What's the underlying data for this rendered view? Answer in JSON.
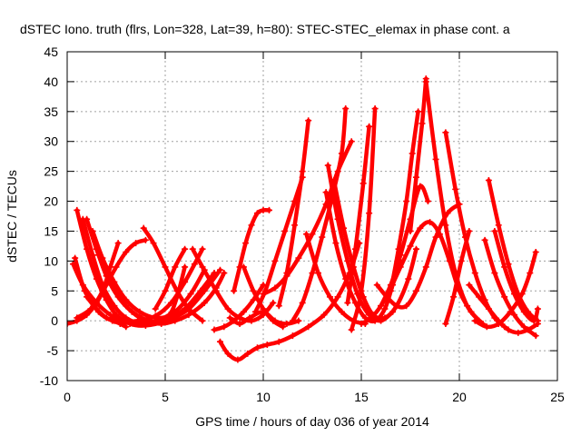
{
  "chart_data": {
    "type": "line",
    "title": "dSTEC Iono. truth (flrs, Lon=328, Lat=39, h=80): STEC-STEC_elemax in phase cont. a",
    "xlabel": "GPS time / hours of day 036 of year 2014",
    "ylabel": "dSTEC  / TECUs",
    "xlim": [
      0,
      25
    ],
    "ylim": [
      -10,
      45
    ],
    "xticks": [
      "0",
      "5",
      "10",
      "15",
      "20",
      "25"
    ],
    "yticks": [
      "-10",
      "-5",
      "0",
      "5",
      "10",
      "15",
      "20",
      "25",
      "30",
      "35",
      "40",
      "45"
    ],
    "grid": true,
    "legend": "none",
    "marker": "plus",
    "series_color": "#ff0000",
    "series": [
      {
        "x": [
          0.0,
          0.5,
          1.0,
          1.5,
          2.0,
          2.5,
          3.0,
          3.5,
          4.0
        ],
        "y": [
          -0.5,
          0.0,
          1.0,
          3.0,
          6.0,
          9.0,
          11.5,
          13.0,
          13.5
        ]
      },
      {
        "x": [
          0.3,
          0.8,
          1.5,
          2.2,
          2.8,
          3.6,
          4.5,
          5.3,
          6.0,
          6.5,
          6.9
        ],
        "y": [
          9.5,
          6.0,
          3.0,
          1.0,
          0.0,
          0.0,
          0.8,
          3.0,
          6.5,
          9.5,
          12.0
        ]
      },
      {
        "x": [
          0.4,
          0.9,
          1.6,
          2.3,
          2.9
        ],
        "y": [
          10.5,
          5.0,
          1.5,
          0.0,
          -0.5
        ]
      },
      {
        "x": [
          0.5,
          1.0,
          1.5,
          2.0,
          2.5,
          3.2,
          4.0,
          5.0,
          6.0,
          6.8,
          7.5
        ],
        "y": [
          18.5,
          12.0,
          7.0,
          3.5,
          1.0,
          -0.5,
          -0.8,
          0.0,
          2.0,
          5.0,
          8.0
        ]
      },
      {
        "x": [
          0.8,
          1.3,
          1.8,
          2.4,
          3.0,
          3.8,
          4.6,
          5.5,
          6.3,
          7.0
        ],
        "y": [
          17.0,
          11.0,
          6.0,
          2.5,
          0.5,
          -0.5,
          0.0,
          1.5,
          4.5,
          8.5
        ]
      },
      {
        "x": [
          1.0,
          1.6,
          2.2,
          3.0,
          3.8,
          4.6,
          5.4,
          6.2,
          7.0,
          7.8
        ],
        "y": [
          17.0,
          11.0,
          6.5,
          2.5,
          0.5,
          -0.2,
          0.5,
          2.0,
          5.0,
          8.5
        ]
      },
      {
        "x": [
          1.3,
          1.8,
          2.4,
          3.0,
          3.7,
          4.5,
          5.2,
          5.6,
          6.0
        ],
        "y": [
          15.0,
          10.5,
          6.5,
          3.5,
          1.5,
          0.5,
          1.0,
          4.0,
          9.0
        ]
      },
      {
        "x": [
          1.5,
          2.0,
          2.6,
          3.3,
          4.0,
          4.8,
          5.5,
          6.2,
          7.0,
          7.6,
          8.0
        ],
        "y": [
          12.0,
          7.5,
          4.0,
          1.5,
          0.0,
          -0.5,
          0.0,
          1.0,
          3.0,
          5.5,
          8.0
        ]
      },
      {
        "x": [
          0.5,
          1.2,
          1.8,
          2.2,
          2.6
        ],
        "y": [
          0.5,
          2.0,
          5.0,
          9.0,
          13.0
        ]
      },
      {
        "x": [
          1.0,
          1.5,
          2.0,
          2.4,
          2.7,
          3.0
        ],
        "y": [
          4.0,
          2.0,
          0.5,
          0.0,
          -0.5,
          -1.0
        ]
      },
      {
        "x": [
          3.9,
          4.4,
          5.0,
          5.6,
          6.2,
          6.9
        ],
        "y": [
          15.5,
          13.0,
          9.0,
          5.0,
          2.0,
          0.0
        ]
      },
      {
        "x": [
          4.5,
          5.0,
          5.5,
          6.0
        ],
        "y": [
          2.0,
          5.0,
          9.0,
          12.0
        ]
      },
      {
        "x": [
          6.4,
          6.9,
          7.6,
          8.2,
          8.8,
          9.4,
          10.0,
          10.5
        ],
        "y": [
          12.0,
          9.0,
          5.0,
          2.0,
          0.5,
          0.0,
          1.0,
          3.0
        ]
      },
      {
        "x": [
          7.8,
          8.2,
          8.7,
          9.2,
          9.7,
          10.2,
          10.8,
          11.5,
          12.3,
          13.1,
          13.8,
          14.4,
          14.9
        ],
        "y": [
          -3.5,
          -5.5,
          -6.5,
          -5.5,
          -4.5,
          -4.0,
          -3.5,
          -2.5,
          -1.0,
          1.0,
          4.0,
          8.0,
          13.0
        ]
      },
      {
        "x": [
          7.5,
          8.0,
          8.5,
          9.0,
          9.5,
          10.0
        ],
        "y": [
          -1.5,
          -1.0,
          0.0,
          1.5,
          3.5,
          6.0
        ]
      },
      {
        "x": [
          8.3,
          8.8,
          9.3,
          10.0,
          10.6,
          11.2,
          11.8
        ],
        "y": [
          0.5,
          -0.5,
          0.5,
          1.5,
          0.0,
          -0.5,
          0.0
        ]
      },
      {
        "x": [
          8.5,
          8.8,
          9.1,
          9.4,
          9.7,
          10.0,
          10.3
        ],
        "y": [
          5.0,
          9.0,
          13.0,
          16.0,
          18.0,
          18.5,
          18.5
        ]
      },
      {
        "x": [
          9.0,
          9.5,
          10.0,
          10.5,
          11.0
        ],
        "y": [
          9.0,
          5.0,
          2.0,
          0.0,
          -1.0
        ]
      },
      {
        "x": [
          9.6,
          10.1,
          10.6,
          11.1,
          11.6,
          12.0
        ],
        "y": [
          1.5,
          5.0,
          10.0,
          15.0,
          20.0,
          24.0
        ]
      },
      {
        "x": [
          10.0,
          10.6,
          11.2,
          11.8,
          12.5,
          13.2,
          13.8,
          14.5
        ],
        "y": [
          4.5,
          5.5,
          7.5,
          10.5,
          14.5,
          19.5,
          25.0,
          30.0
        ]
      },
      {
        "x": [
          10.8,
          11.2,
          11.6,
          12.0,
          12.3
        ],
        "y": [
          2.5,
          8.0,
          16.0,
          25.0,
          33.5
        ]
      },
      {
        "x": [
          12.2,
          12.8,
          13.4,
          14.0,
          14.6,
          15.2
        ],
        "y": [
          14.5,
          8.0,
          4.0,
          1.5,
          0.0,
          -0.5
        ]
      },
      {
        "x": [
          11.5,
          12.0,
          12.5,
          13.0,
          13.5,
          14.0,
          14.2
        ],
        "y": [
          0.0,
          3.0,
          8.0,
          14.0,
          20.5,
          28.0,
          35.5
        ]
      },
      {
        "x": [
          13.2,
          13.7,
          14.2,
          14.7,
          15.2,
          15.7,
          16.2,
          16.6,
          17.0
        ],
        "y": [
          21.5,
          13.0,
          7.0,
          3.0,
          0.5,
          0.0,
          2.0,
          6.0,
          10.0
        ]
      },
      {
        "x": [
          13.3,
          13.8,
          14.3,
          14.8,
          15.4,
          16.0,
          16.6
        ],
        "y": [
          26.0,
          17.0,
          10.0,
          4.5,
          1.0,
          0.0,
          1.5
        ]
      },
      {
        "x": [
          13.6,
          14.1,
          14.6,
          15.1,
          15.6,
          16.2,
          16.8,
          17.4,
          17.8
        ],
        "y": [
          23.5,
          15.5,
          9.0,
          4.0,
          1.0,
          0.5,
          2.5,
          7.0,
          12.0
        ]
      },
      {
        "x": [
          14.5,
          15.0,
          15.4,
          15.7
        ],
        "y": [
          -1.5,
          5.0,
          18.0,
          35.5
        ]
      },
      {
        "x": [
          14.3,
          14.7,
          15.1,
          15.4
        ],
        "y": [
          3.0,
          12.0,
          23.0,
          32.5
        ]
      },
      {
        "x": [
          15.0,
          15.5,
          16.0,
          16.5,
          17.0,
          17.5,
          18.0,
          18.5,
          19.0,
          19.5,
          20.0,
          20.6,
          21.2
        ],
        "y": [
          -0.5,
          0.5,
          2.5,
          5.5,
          9.0,
          12.5,
          15.5,
          16.5,
          14.5,
          10.0,
          5.0,
          1.5,
          -0.5
        ]
      },
      {
        "x": [
          15.8,
          16.3,
          16.8,
          17.3,
          17.8,
          18.3,
          18.8,
          19.4,
          20.0
        ],
        "y": [
          6.0,
          4.0,
          2.5,
          2.5,
          5.0,
          9.0,
          14.0,
          18.0,
          19.5
        ]
      },
      {
        "x": [
          16.0,
          16.5,
          17.0,
          17.5,
          18.0,
          18.4
        ],
        "y": [
          2.5,
          6.0,
          11.0,
          17.0,
          22.5,
          20.0
        ]
      },
      {
        "x": [
          16.5,
          16.9,
          17.3,
          17.6,
          17.9
        ],
        "y": [
          5.0,
          12.0,
          20.0,
          28.0,
          35.0
        ]
      },
      {
        "x": [
          17.5,
          17.8,
          18.1,
          18.3
        ],
        "y": [
          15.0,
          24.0,
          33.0,
          40.5
        ]
      },
      {
        "x": [
          18.3,
          18.8,
          19.3,
          19.8,
          20.4,
          21.0
        ],
        "y": [
          40.0,
          27.0,
          16.0,
          8.0,
          2.5,
          0.0
        ]
      },
      {
        "x": [
          19.3,
          19.8,
          20.3,
          20.8,
          21.3,
          21.8,
          22.3
        ],
        "y": [
          31.5,
          22.0,
          14.0,
          8.0,
          3.5,
          0.5,
          -1.0
        ]
      },
      {
        "x": [
          19.3,
          19.7,
          20.1,
          20.5
        ],
        "y": [
          -0.5,
          4.0,
          10.0,
          15.0
        ]
      },
      {
        "x": [
          21.5,
          22.0,
          22.5,
          23.0,
          23.5,
          24.0
        ],
        "y": [
          23.5,
          16.0,
          9.5,
          4.5,
          1.5,
          0.0
        ]
      },
      {
        "x": [
          21.3,
          21.8,
          22.3,
          22.8,
          23.3,
          23.9
        ],
        "y": [
          13.5,
          8.0,
          4.0,
          1.0,
          -1.0,
          -2.5
        ]
      },
      {
        "x": [
          20.5,
          21.0,
          21.5,
          22.0,
          22.5,
          23.0,
          23.5,
          24.0
        ],
        "y": [
          6.0,
          4.0,
          2.0,
          0.0,
          -1.5,
          -2.0,
          -1.5,
          -0.5
        ]
      },
      {
        "x": [
          21.8,
          22.3,
          22.8,
          23.3,
          23.8,
          24.0
        ],
        "y": [
          15.0,
          9.0,
          4.5,
          1.5,
          0.0,
          2.0
        ]
      },
      {
        "x": [
          20.8,
          21.4,
          22.0,
          22.6,
          23.2,
          23.6,
          23.9
        ],
        "y": [
          0.0,
          -1.0,
          -0.5,
          1.5,
          4.5,
          8.0,
          11.5
        ]
      }
    ]
  }
}
